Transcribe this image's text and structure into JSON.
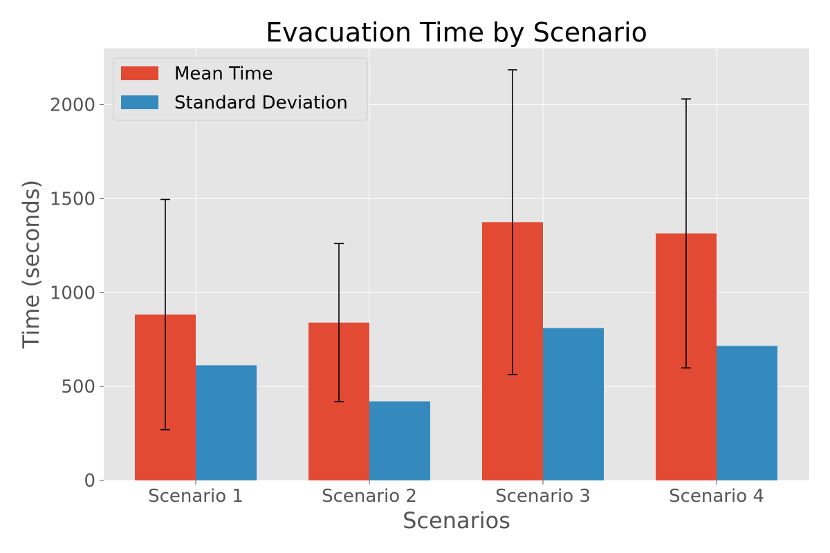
{
  "chart_data": {
    "type": "bar",
    "title": "Evacuation Time by Scenario",
    "xlabel": "Scenarios",
    "ylabel": "Time (seconds)",
    "categories": [
      "Scenario 1",
      "Scenario 2",
      "Scenario 3",
      "Scenario 4"
    ],
    "series": [
      {
        "name": "Mean Time",
        "color": "#E24A33",
        "values": [
          883,
          840,
          1375,
          1315
        ],
        "error": [
          613,
          421,
          811,
          716
        ]
      },
      {
        "name": "Standard Deviation",
        "color": "#348ABD",
        "values": [
          613,
          421,
          811,
          716
        ]
      }
    ],
    "ylim": [
      0,
      2300
    ],
    "yticks": [
      0,
      500,
      1000,
      1500,
      2000
    ],
    "ytick_labels": [
      "0",
      "500",
      "1000",
      "1500",
      "2000"
    ],
    "grid": true,
    "legend_position": "top-left"
  }
}
